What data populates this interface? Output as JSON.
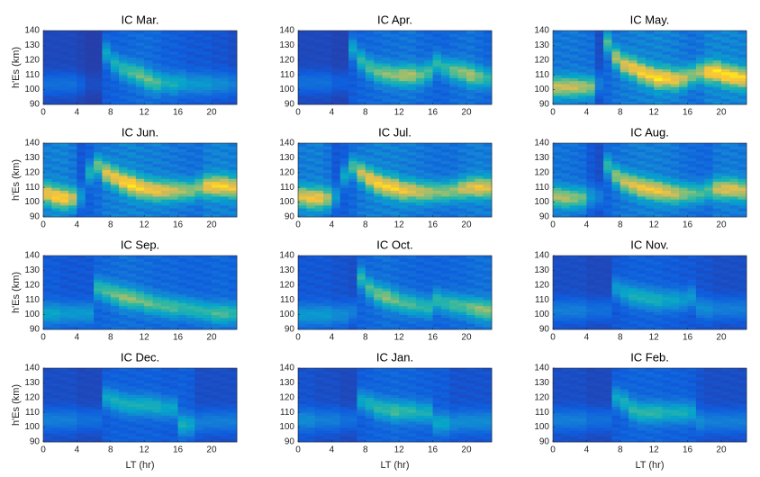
{
  "chart_data": [
    {
      "type": "heatmap",
      "title": "IC Mar.",
      "ylabel": "h'Es (km)",
      "x": [
        0,
        1,
        2,
        3,
        4,
        5,
        6,
        7,
        8,
        9,
        10,
        11,
        12,
        13,
        14,
        15,
        16,
        17,
        18,
        19,
        20,
        21,
        22
      ],
      "peak_height": [
        104,
        104,
        104,
        104,
        104,
        104,
        104,
        125,
        118,
        114,
        112,
        110,
        107,
        105,
        105,
        104,
        105,
        104,
        104,
        104,
        104,
        104,
        104
      ],
      "intensity": [
        0.15,
        0.15,
        0.15,
        0.15,
        0.1,
        0.05,
        0.05,
        0.35,
        0.4,
        0.45,
        0.5,
        0.55,
        0.55,
        0.5,
        0.4,
        0.4,
        0.35,
        0.3,
        0.3,
        0.3,
        0.25,
        0.25,
        0.2
      ],
      "xlim": [
        0,
        23
      ],
      "xticks": [
        0,
        4,
        8,
        12,
        16,
        20
      ],
      "ylim": [
        90,
        140
      ],
      "yticks": [
        90,
        100,
        110,
        120,
        130,
        140
      ]
    },
    {
      "type": "heatmap",
      "title": "IC Apr.",
      "x": [
        0,
        1,
        2,
        3,
        4,
        5,
        6,
        7,
        8,
        9,
        10,
        11,
        12,
        13,
        14,
        15,
        16,
        17,
        18,
        19,
        20,
        21,
        22
      ],
      "peak_height": [
        105,
        105,
        105,
        105,
        105,
        105,
        128,
        120,
        115,
        112,
        111,
        110,
        110,
        110,
        110,
        112,
        118,
        115,
        113,
        112,
        110,
        109,
        108
      ],
      "intensity": [
        0.15,
        0.15,
        0.15,
        0.15,
        0.1,
        0.1,
        0.35,
        0.45,
        0.5,
        0.55,
        0.6,
        0.6,
        0.65,
        0.65,
        0.55,
        0.5,
        0.45,
        0.45,
        0.55,
        0.6,
        0.65,
        0.55,
        0.45
      ],
      "xlim": [
        0,
        23
      ],
      "xticks": [
        0,
        4,
        8,
        12,
        16,
        20
      ],
      "ylim": [
        90,
        140
      ],
      "yticks": [
        90,
        100,
        110,
        120,
        130,
        140
      ]
    },
    {
      "type": "heatmap",
      "title": "IC May.",
      "x": [
        0,
        1,
        2,
        3,
        4,
        5,
        6,
        7,
        8,
        9,
        10,
        11,
        12,
        13,
        14,
        15,
        16,
        17,
        18,
        19,
        20,
        21,
        22
      ],
      "peak_height": [
        102,
        102,
        102,
        102,
        102,
        104,
        132,
        122,
        117,
        115,
        112,
        110,
        108,
        108,
        107,
        108,
        110,
        112,
        112,
        112,
        110,
        109,
        108
      ],
      "intensity": [
        0.7,
        0.7,
        0.7,
        0.65,
        0.6,
        0.2,
        0.5,
        0.65,
        0.75,
        0.8,
        0.85,
        0.85,
        0.9,
        0.85,
        0.8,
        0.7,
        0.6,
        0.65,
        0.85,
        0.9,
        0.9,
        0.9,
        0.85
      ],
      "xlim": [
        0,
        23
      ],
      "xticks": [
        0,
        4,
        8,
        12,
        16,
        20
      ],
      "ylim": [
        90,
        140
      ],
      "yticks": [
        90,
        100,
        110,
        120,
        130,
        140
      ]
    },
    {
      "type": "heatmap",
      "title": "IC Jun.",
      "ylabel": "h'Es (km)",
      "x": [
        0,
        1,
        2,
        3,
        4,
        5,
        6,
        7,
        8,
        9,
        10,
        11,
        12,
        13,
        14,
        15,
        16,
        17,
        18,
        19,
        20,
        21,
        22
      ],
      "peak_height": [
        106,
        104,
        103,
        103,
        104,
        120,
        125,
        120,
        117,
        114,
        112,
        110,
        109,
        108,
        108,
        108,
        108,
        108,
        110,
        111,
        111,
        111,
        110
      ],
      "intensity": [
        0.8,
        0.85,
        0.85,
        0.7,
        0.3,
        0.4,
        0.55,
        0.75,
        0.8,
        0.85,
        0.9,
        0.85,
        0.8,
        0.8,
        0.75,
        0.7,
        0.65,
        0.6,
        0.6,
        0.8,
        0.85,
        0.85,
        0.8
      ],
      "xlim": [
        0,
        23
      ],
      "xticks": [
        0,
        4,
        8,
        12,
        16,
        20
      ],
      "ylim": [
        90,
        140
      ],
      "yticks": [
        90,
        100,
        110,
        120,
        130,
        140
      ]
    },
    {
      "type": "heatmap",
      "title": "IC Jul.",
      "x": [
        0,
        1,
        2,
        3,
        4,
        5,
        6,
        7,
        8,
        9,
        10,
        11,
        12,
        13,
        14,
        15,
        16,
        17,
        18,
        19,
        20,
        21,
        22
      ],
      "peak_height": [
        104,
        103,
        103,
        103,
        104,
        118,
        124,
        120,
        116,
        113,
        111,
        110,
        108,
        108,
        107,
        107,
        107,
        107,
        108,
        109,
        110,
        110,
        110
      ],
      "intensity": [
        0.75,
        0.8,
        0.8,
        0.65,
        0.3,
        0.35,
        0.5,
        0.7,
        0.8,
        0.85,
        0.85,
        0.85,
        0.8,
        0.75,
        0.7,
        0.65,
        0.6,
        0.6,
        0.6,
        0.7,
        0.75,
        0.8,
        0.75
      ],
      "xlim": [
        0,
        23
      ],
      "xticks": [
        0,
        4,
        8,
        12,
        16,
        20
      ],
      "ylim": [
        90,
        140
      ],
      "yticks": [
        90,
        100,
        110,
        120,
        130,
        140
      ]
    },
    {
      "type": "heatmap",
      "title": "IC Aug.",
      "x": [
        0,
        1,
        2,
        3,
        4,
        5,
        6,
        7,
        8,
        9,
        10,
        11,
        12,
        13,
        14,
        15,
        16,
        17,
        18,
        19,
        20,
        21,
        22
      ],
      "peak_height": [
        104,
        103,
        103,
        103,
        104,
        104,
        125,
        118,
        114,
        112,
        110,
        109,
        108,
        107,
        106,
        106,
        106,
        106,
        108,
        109,
        109,
        109,
        108
      ],
      "intensity": [
        0.65,
        0.65,
        0.6,
        0.55,
        0.3,
        0.2,
        0.45,
        0.6,
        0.7,
        0.75,
        0.8,
        0.8,
        0.8,
        0.75,
        0.7,
        0.6,
        0.55,
        0.5,
        0.5,
        0.7,
        0.75,
        0.75,
        0.7
      ],
      "xlim": [
        0,
        23
      ],
      "xticks": [
        0,
        4,
        8,
        12,
        16,
        20
      ],
      "ylim": [
        90,
        140
      ],
      "yticks": [
        90,
        100,
        110,
        120,
        130,
        140
      ]
    },
    {
      "type": "heatmap",
      "title": "IC Sep.",
      "ylabel": "h'Es (km)",
      "x": [
        0,
        1,
        2,
        3,
        4,
        5,
        6,
        7,
        8,
        9,
        10,
        11,
        12,
        13,
        14,
        15,
        16,
        17,
        18,
        19,
        20,
        21,
        22
      ],
      "peak_height": [
        101,
        101,
        101,
        101,
        101,
        101,
        118,
        116,
        114,
        112,
        111,
        110,
        108,
        107,
        106,
        105,
        105,
        104,
        103,
        102,
        101,
        101,
        101
      ],
      "intensity": [
        0.35,
        0.35,
        0.3,
        0.3,
        0.3,
        0.3,
        0.45,
        0.5,
        0.55,
        0.6,
        0.6,
        0.55,
        0.55,
        0.5,
        0.5,
        0.5,
        0.45,
        0.45,
        0.45,
        0.45,
        0.5,
        0.5,
        0.45
      ],
      "xlim": [
        0,
        23
      ],
      "xticks": [
        0,
        4,
        8,
        12,
        16,
        20
      ],
      "ylim": [
        90,
        140
      ],
      "yticks": [
        90,
        100,
        110,
        120,
        130,
        140
      ]
    },
    {
      "type": "heatmap",
      "title": "IC Oct.",
      "x": [
        0,
        1,
        2,
        3,
        4,
        5,
        6,
        7,
        8,
        9,
        10,
        11,
        12,
        13,
        14,
        15,
        16,
        17,
        18,
        19,
        20,
        21,
        22
      ],
      "peak_height": [
        100,
        100,
        100,
        100,
        100,
        100,
        102,
        125,
        118,
        114,
        112,
        110,
        108,
        107,
        106,
        105,
        110,
        108,
        107,
        106,
        105,
        104,
        103
      ],
      "intensity": [
        0.3,
        0.3,
        0.3,
        0.3,
        0.25,
        0.25,
        0.2,
        0.45,
        0.5,
        0.55,
        0.6,
        0.55,
        0.5,
        0.5,
        0.45,
        0.45,
        0.45,
        0.45,
        0.5,
        0.5,
        0.55,
        0.6,
        0.6
      ],
      "xlim": [
        0,
        23
      ],
      "xticks": [
        0,
        4,
        8,
        12,
        16,
        20
      ],
      "ylim": [
        90,
        140
      ],
      "yticks": [
        90,
        100,
        110,
        120,
        130,
        140
      ]
    },
    {
      "type": "heatmap",
      "title": "IC Nov.",
      "x": [
        0,
        1,
        2,
        3,
        4,
        5,
        6,
        7,
        8,
        9,
        10,
        11,
        12,
        13,
        14,
        15,
        16,
        17,
        18,
        19,
        20,
        21,
        22
      ],
      "peak_height": [
        103,
        103,
        103,
        103,
        103,
        103,
        103,
        118,
        115,
        113,
        112,
        111,
        110,
        110,
        110,
        110,
        112,
        105,
        104,
        104,
        104,
        104,
        104
      ],
      "intensity": [
        0.2,
        0.2,
        0.2,
        0.2,
        0.15,
        0.15,
        0.15,
        0.3,
        0.35,
        0.4,
        0.4,
        0.4,
        0.4,
        0.35,
        0.35,
        0.3,
        0.3,
        0.25,
        0.25,
        0.2,
        0.2,
        0.2,
        0.2
      ],
      "xlim": [
        0,
        23
      ],
      "xticks": [
        0,
        4,
        8,
        12,
        16,
        20
      ],
      "ylim": [
        90,
        140
      ],
      "yticks": [
        90,
        100,
        110,
        120,
        130,
        140
      ]
    },
    {
      "type": "heatmap",
      "title": "IC Dec.",
      "ylabel": "h'Es (km)",
      "xlabel": "LT (hr)",
      "x": [
        0,
        1,
        2,
        3,
        4,
        5,
        6,
        7,
        8,
        9,
        10,
        11,
        12,
        13,
        14,
        15,
        16,
        17,
        18,
        19,
        20,
        21,
        22
      ],
      "peak_height": [
        105,
        105,
        105,
        105,
        105,
        105,
        105,
        120,
        118,
        116,
        115,
        115,
        115,
        114,
        113,
        113,
        102,
        102,
        103,
        104,
        104,
        104,
        104
      ],
      "intensity": [
        0.2,
        0.2,
        0.2,
        0.2,
        0.15,
        0.15,
        0.15,
        0.35,
        0.4,
        0.4,
        0.4,
        0.4,
        0.4,
        0.4,
        0.35,
        0.35,
        0.4,
        0.35,
        0.2,
        0.2,
        0.2,
        0.2,
        0.2
      ],
      "xlim": [
        0,
        23
      ],
      "xticks": [
        0,
        4,
        8,
        12,
        16,
        20
      ],
      "ylim": [
        90,
        140
      ],
      "yticks": [
        90,
        100,
        110,
        120,
        130,
        140
      ]
    },
    {
      "type": "heatmap",
      "title": "IC Jan.",
      "xlabel": "LT (hr)",
      "x": [
        0,
        1,
        2,
        3,
        4,
        5,
        6,
        7,
        8,
        9,
        10,
        11,
        12,
        13,
        14,
        15,
        16,
        17,
        18,
        19,
        20,
        21,
        22
      ],
      "peak_height": [
        105,
        105,
        105,
        105,
        105,
        105,
        105,
        118,
        116,
        113,
        112,
        111,
        111,
        111,
        110,
        110,
        103,
        103,
        103,
        104,
        104,
        104,
        104
      ],
      "intensity": [
        0.25,
        0.25,
        0.2,
        0.2,
        0.2,
        0.15,
        0.15,
        0.35,
        0.4,
        0.45,
        0.45,
        0.5,
        0.45,
        0.45,
        0.4,
        0.4,
        0.35,
        0.35,
        0.25,
        0.25,
        0.25,
        0.25,
        0.25
      ],
      "xlim": [
        0,
        23
      ],
      "xticks": [
        0,
        4,
        8,
        12,
        16,
        20
      ],
      "ylim": [
        90,
        140
      ],
      "yticks": [
        90,
        100,
        110,
        120,
        130,
        140
      ]
    },
    {
      "type": "heatmap",
      "title": "IC Feb.",
      "xlabel": "LT (hr)",
      "x": [
        0,
        1,
        2,
        3,
        4,
        5,
        6,
        7,
        8,
        9,
        10,
        11,
        12,
        13,
        14,
        15,
        16,
        17,
        18,
        19,
        20,
        21,
        22
      ],
      "peak_height": [
        105,
        105,
        105,
        105,
        105,
        105,
        105,
        120,
        117,
        112,
        110,
        110,
        110,
        110,
        110,
        110,
        110,
        104,
        104,
        104,
        104,
        104,
        104
      ],
      "intensity": [
        0.2,
        0.2,
        0.2,
        0.2,
        0.15,
        0.15,
        0.15,
        0.35,
        0.4,
        0.45,
        0.45,
        0.45,
        0.45,
        0.4,
        0.4,
        0.4,
        0.35,
        0.25,
        0.2,
        0.2,
        0.2,
        0.2,
        0.2
      ],
      "xlim": [
        0,
        23
      ],
      "xticks": [
        0,
        4,
        8,
        12,
        16,
        20
      ],
      "ylim": [
        90,
        140
      ],
      "yticks": [
        90,
        100,
        110,
        120,
        130,
        140
      ]
    }
  ]
}
